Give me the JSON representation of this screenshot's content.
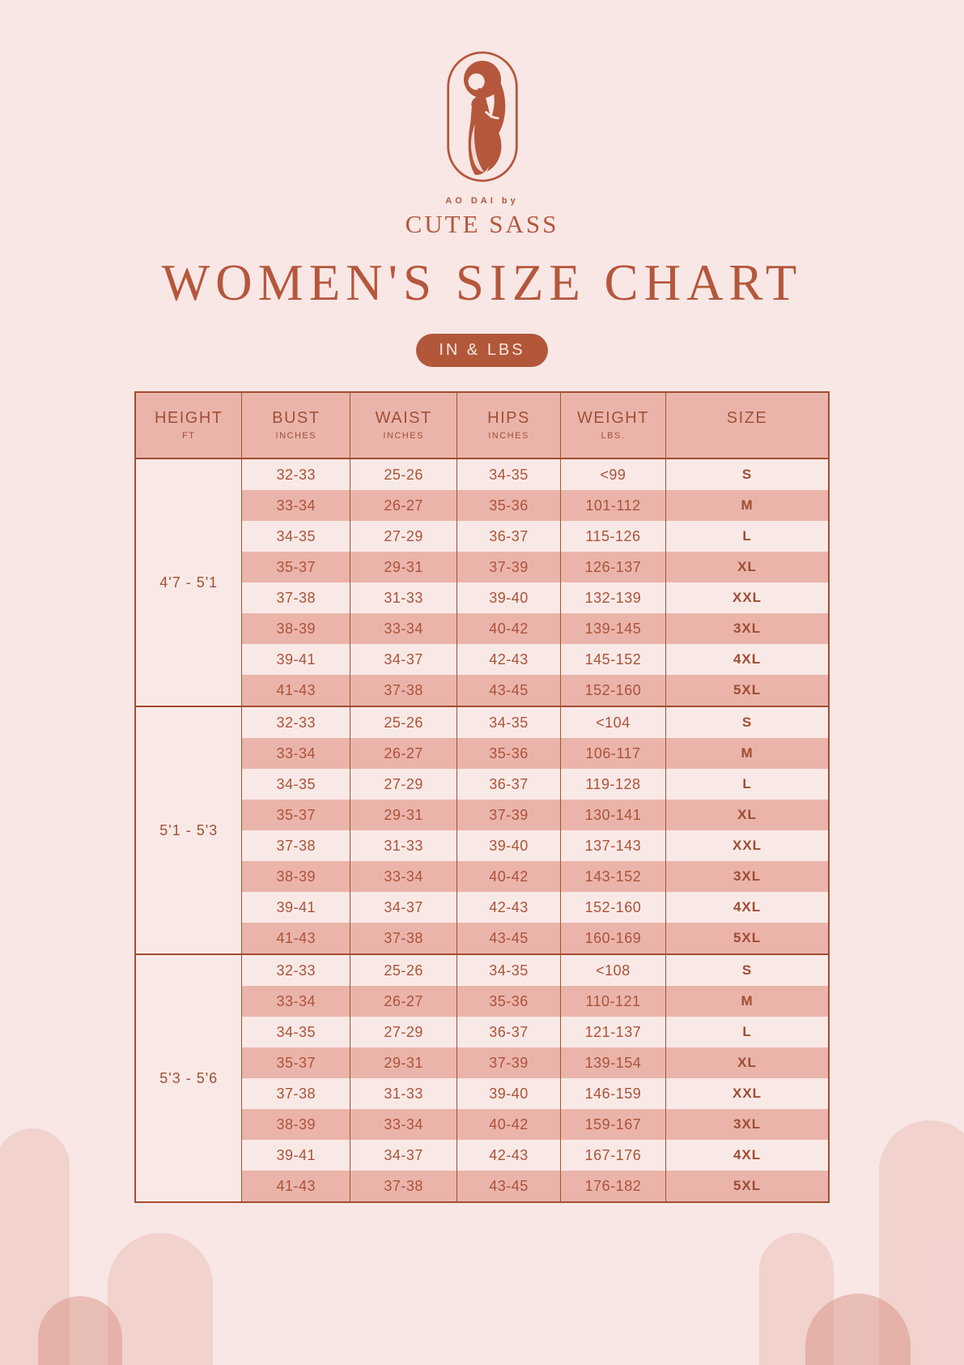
{
  "colors": {
    "background": "#f8e7e5",
    "accent": "#b5573c",
    "table_stripe_dark": "#eab4ab",
    "table_stripe_light": "#f9e9e6",
    "table_border": "#a44c30",
    "badge_text": "#f9e6e1"
  },
  "brand": {
    "logo_icon": "woman-in-ao-dai-oval-emblem",
    "tagline": "AO DAI by",
    "name": "CUTE SASS"
  },
  "title": "WOMEN'S SIZE CHART",
  "units_badge": "IN & LBS",
  "chart_data": {
    "type": "table",
    "title": "Women's size chart (inches and pounds)",
    "columns": [
      {
        "key": "height",
        "label": "HEIGHT",
        "sub": "FT"
      },
      {
        "key": "bust",
        "label": "BUST",
        "sub": "INCHES"
      },
      {
        "key": "waist",
        "label": "WAIST",
        "sub": "INCHES"
      },
      {
        "key": "hips",
        "label": "HIPS",
        "sub": "INCHES"
      },
      {
        "key": "weight",
        "label": "WEIGHT",
        "sub": "LBS."
      },
      {
        "key": "size",
        "label": "SIZE",
        "sub": ""
      }
    ],
    "sections": [
      {
        "height": "4'7 - 5'1",
        "rows": [
          {
            "bust": "32-33",
            "waist": "25-26",
            "hips": "34-35",
            "weight": "<99",
            "size": "S"
          },
          {
            "bust": "33-34",
            "waist": "26-27",
            "hips": "35-36",
            "weight": "101-112",
            "size": "M"
          },
          {
            "bust": "34-35",
            "waist": "27-29",
            "hips": "36-37",
            "weight": "115-126",
            "size": "L"
          },
          {
            "bust": "35-37",
            "waist": "29-31",
            "hips": "37-39",
            "weight": "126-137",
            "size": "XL"
          },
          {
            "bust": "37-38",
            "waist": "31-33",
            "hips": "39-40",
            "weight": "132-139",
            "size": "XXL"
          },
          {
            "bust": "38-39",
            "waist": "33-34",
            "hips": "40-42",
            "weight": "139-145",
            "size": "3XL"
          },
          {
            "bust": "39-41",
            "waist": "34-37",
            "hips": "42-43",
            "weight": "145-152",
            "size": "4XL"
          },
          {
            "bust": "41-43",
            "waist": "37-38",
            "hips": "43-45",
            "weight": "152-160",
            "size": "5XL"
          }
        ]
      },
      {
        "height": "5'1 - 5'3",
        "rows": [
          {
            "bust": "32-33",
            "waist": "25-26",
            "hips": "34-35",
            "weight": "<104",
            "size": "S"
          },
          {
            "bust": "33-34",
            "waist": "26-27",
            "hips": "35-36",
            "weight": "106-117",
            "size": "M"
          },
          {
            "bust": "34-35",
            "waist": "27-29",
            "hips": "36-37",
            "weight": "119-128",
            "size": "L"
          },
          {
            "bust": "35-37",
            "waist": "29-31",
            "hips": "37-39",
            "weight": "130-141",
            "size": "XL"
          },
          {
            "bust": "37-38",
            "waist": "31-33",
            "hips": "39-40",
            "weight": "137-143",
            "size": "XXL"
          },
          {
            "bust": "38-39",
            "waist": "33-34",
            "hips": "40-42",
            "weight": "143-152",
            "size": "3XL"
          },
          {
            "bust": "39-41",
            "waist": "34-37",
            "hips": "42-43",
            "weight": "152-160",
            "size": "4XL"
          },
          {
            "bust": "41-43",
            "waist": "37-38",
            "hips": "43-45",
            "weight": "160-169",
            "size": "5XL"
          }
        ]
      },
      {
        "height": "5'3 - 5'6",
        "rows": [
          {
            "bust": "32-33",
            "waist": "25-26",
            "hips": "34-35",
            "weight": "<108",
            "size": "S"
          },
          {
            "bust": "33-34",
            "waist": "26-27",
            "hips": "35-36",
            "weight": "110-121",
            "size": "M"
          },
          {
            "bust": "34-35",
            "waist": "27-29",
            "hips": "36-37",
            "weight": "121-137",
            "size": "L"
          },
          {
            "bust": "35-37",
            "waist": "29-31",
            "hips": "37-39",
            "weight": "139-154",
            "size": "XL"
          },
          {
            "bust": "37-38",
            "waist": "31-33",
            "hips": "39-40",
            "weight": "146-159",
            "size": "XXL"
          },
          {
            "bust": "38-39",
            "waist": "33-34",
            "hips": "40-42",
            "weight": "159-167",
            "size": "3XL"
          },
          {
            "bust": "39-41",
            "waist": "34-37",
            "hips": "42-43",
            "weight": "167-176",
            "size": "4XL"
          },
          {
            "bust": "41-43",
            "waist": "37-38",
            "hips": "43-45",
            "weight": "176-182",
            "size": "5XL"
          }
        ]
      }
    ]
  }
}
